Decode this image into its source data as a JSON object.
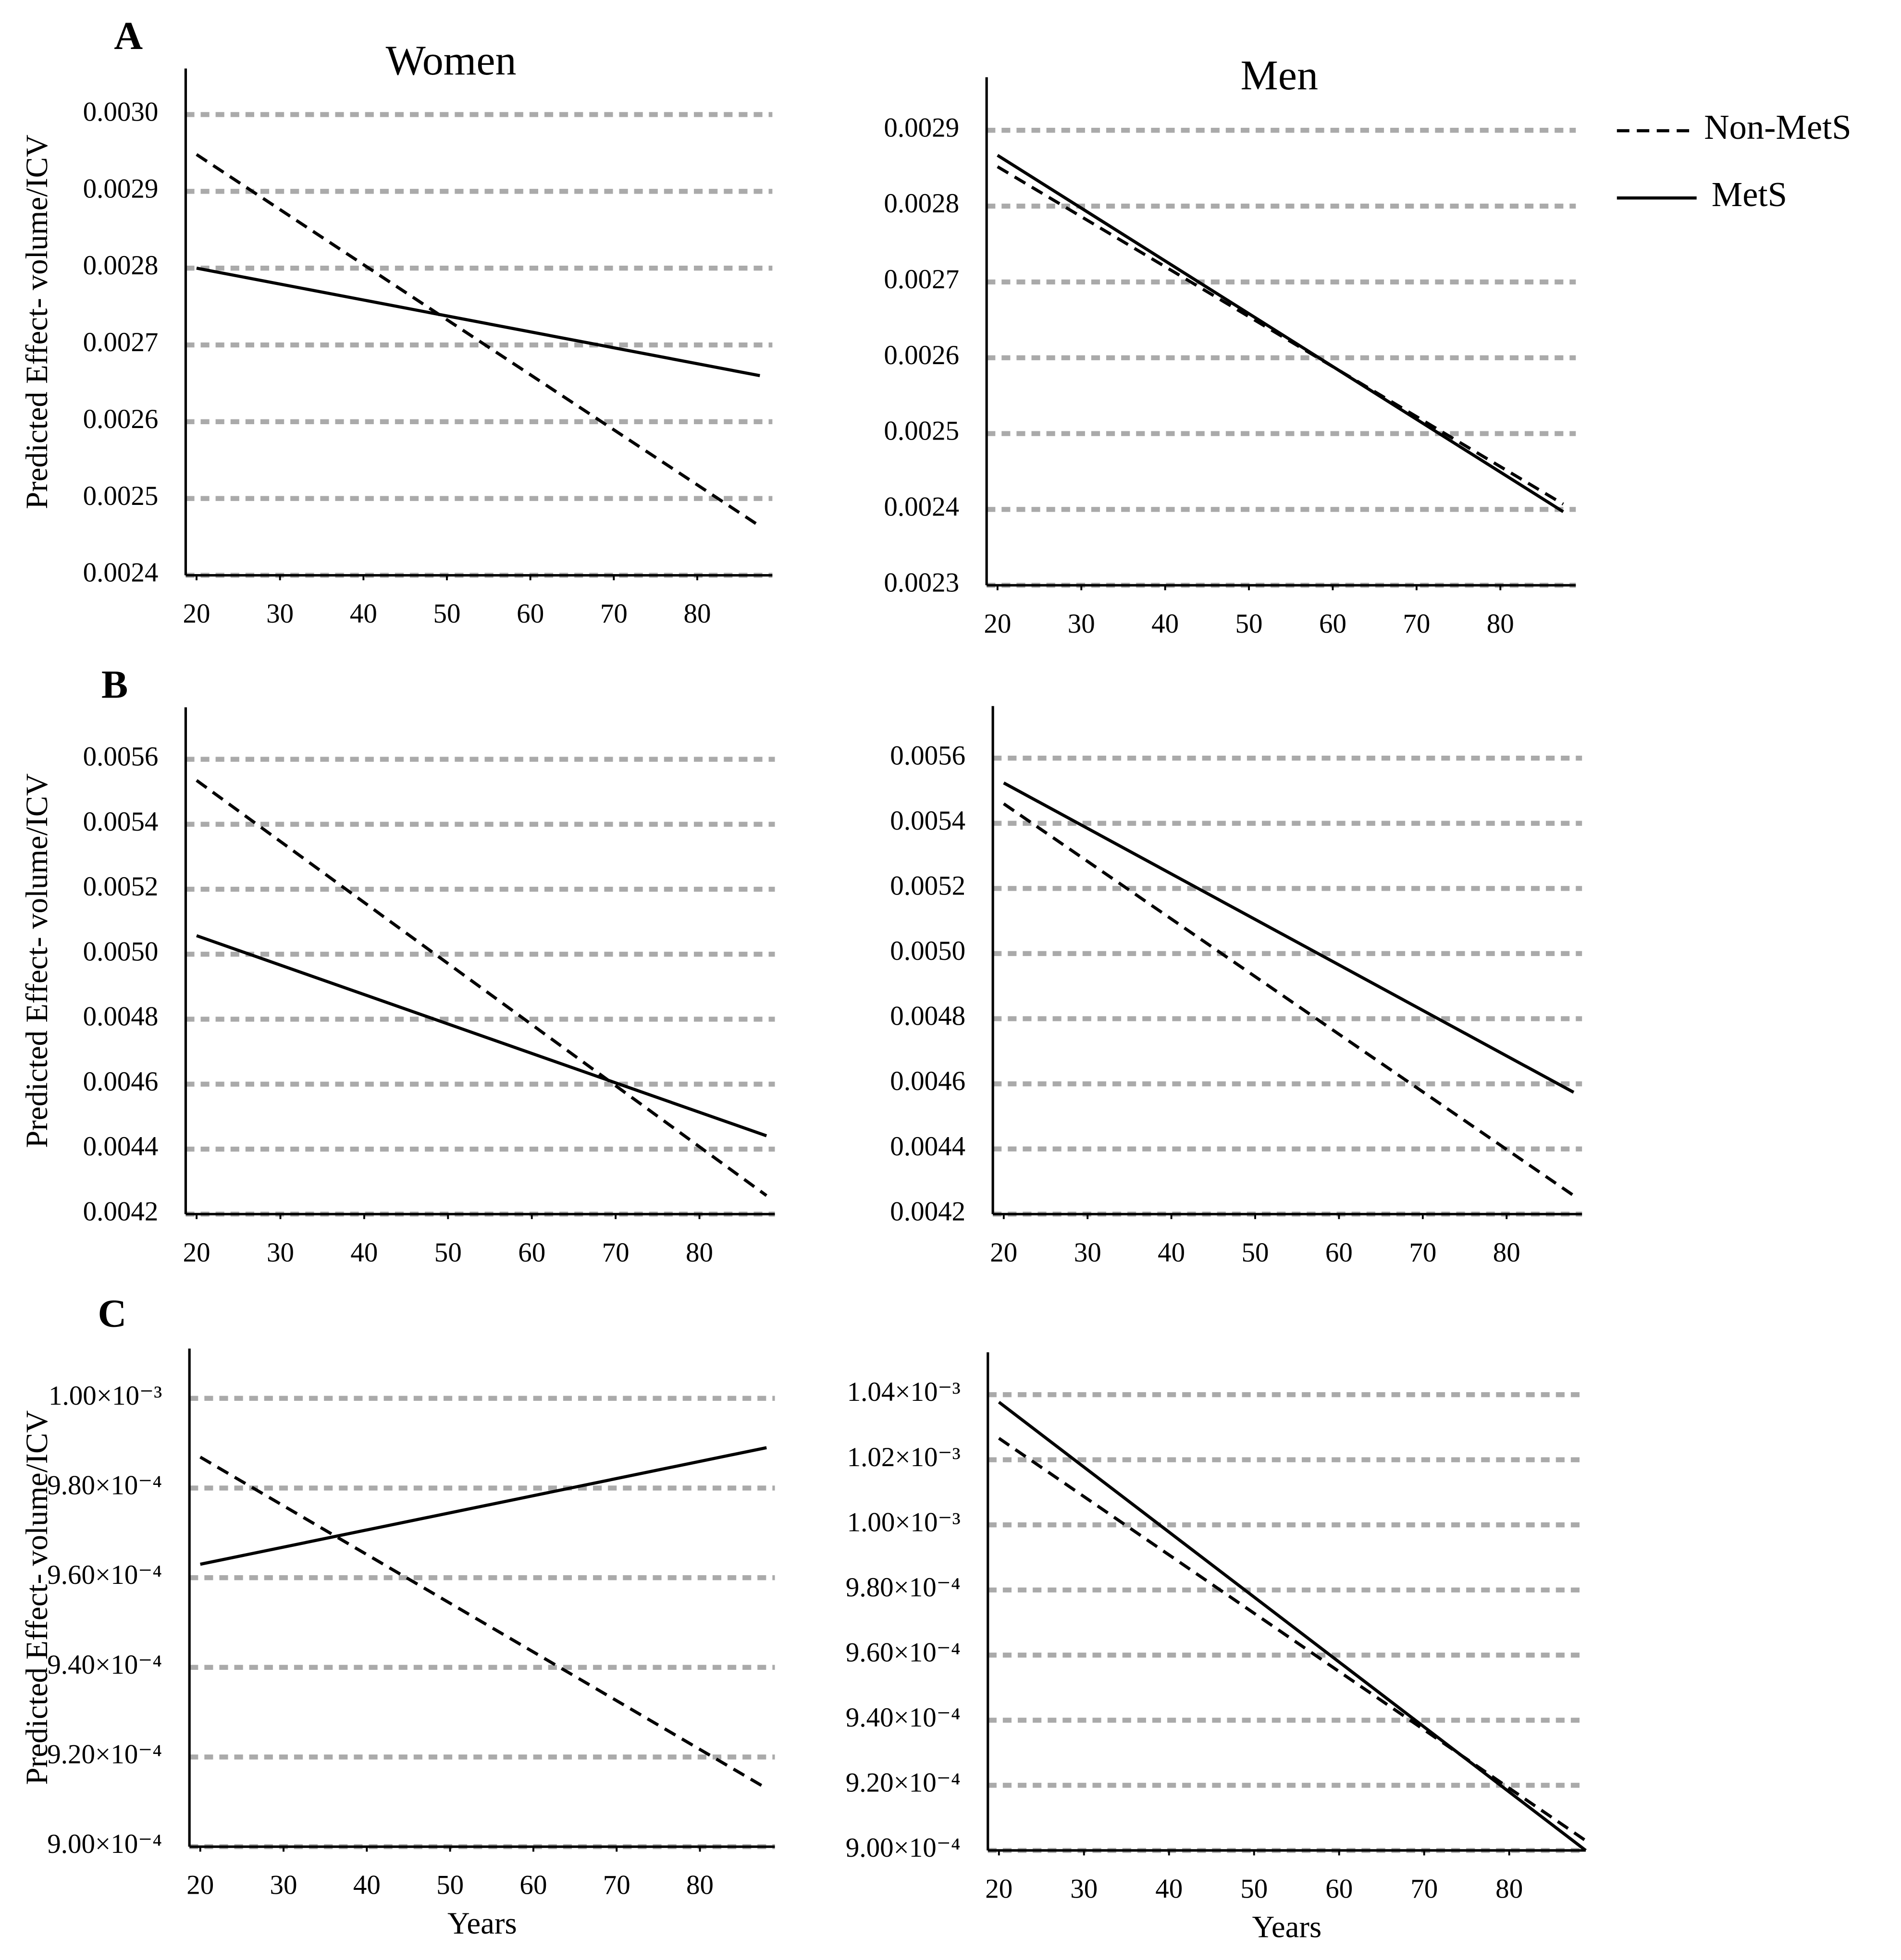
{
  "chart_data": [
    {
      "type": "line",
      "panel": "A",
      "title": "Women",
      "ylabel": "Predicted Effect- volume/ICV",
      "x": [
        20,
        87.5
      ],
      "series": [
        {
          "color": "#000000",
          "dash": "dashed",
          "values": [
            0.002948,
            0.002464
          ]
        },
        {
          "color": "#000000",
          "dash": "solid",
          "values": [
            0.0028,
            0.00266
          ]
        }
      ],
      "xlim": [
        18.7,
        89
      ],
      "xticks": [
        20,
        30,
        40,
        50,
        60,
        70,
        80
      ],
      "ylim": [
        0.0024,
        0.00306
      ],
      "yticks": [
        0.0024,
        0.0025,
        0.0026,
        0.0027,
        0.0028,
        0.0029,
        {
          "value": 0.003,
          "label": "0.0030"
        }
      ],
      "grid": true
    },
    {
      "type": "line",
      "title": "Men",
      "x": [
        20,
        87.5
      ],
      "legend": "right",
      "series": [
        {
          "name": "Non-MetS",
          "color": "#000000",
          "dash": "dashed",
          "values": [
            0.002852,
            0.002407
          ]
        },
        {
          "name": "MetS",
          "color": "#000000",
          "dash": "solid",
          "values": [
            0.002867,
            0.002397
          ]
        }
      ],
      "xlim": [
        18.7,
        89
      ],
      "xticks": [
        20,
        30,
        40,
        50,
        60,
        70,
        80
      ],
      "ylim": [
        0.0023,
        0.00297
      ],
      "yticks": [
        0.0023,
        0.0024,
        0.0025,
        0.0026,
        0.0027,
        0.0028,
        0.0029
      ],
      "grid": true
    },
    {
      "type": "line",
      "panel": "B",
      "ylabel": "Predicted Effect- volume/ICV",
      "x": [
        20,
        88
      ],
      "series": [
        {
          "color": "#000000",
          "dash": "dashed",
          "values": [
            0.005535,
            0.004257
          ]
        },
        {
          "color": "#000000",
          "dash": "solid",
          "values": [
            0.005057,
            0.004441
          ]
        }
      ],
      "xlim": [
        18.7,
        89
      ],
      "xticks": [
        20,
        30,
        40,
        50,
        60,
        70,
        80
      ],
      "ylim": [
        0.0042,
        0.00576
      ],
      "yticks": [
        0.0042,
        0.0044,
        0.0046,
        0.0048,
        {
          "value": 0.005,
          "label": "0.0050"
        },
        0.0052,
        0.0054,
        0.0056
      ],
      "grid": true
    },
    {
      "type": "line",
      "x": [
        20,
        88
      ],
      "series": [
        {
          "color": "#000000",
          "dash": "dashed",
          "values": [
            0.00546,
            0.004257
          ]
        },
        {
          "color": "#000000",
          "dash": "solid",
          "values": [
            0.005524,
            0.004574
          ]
        }
      ],
      "xlim": [
        18.7,
        89
      ],
      "xticks": [
        20,
        30,
        40,
        50,
        60,
        70,
        80
      ],
      "ylim": [
        0.0042,
        0.00576
      ],
      "yticks": [
        0.0042,
        0.0044,
        0.0046,
        0.0048,
        {
          "value": 0.005,
          "label": "0.0050"
        },
        0.0052,
        0.0054,
        0.0056
      ],
      "grid": true
    },
    {
      "type": "line",
      "panel": "C",
      "ylabel": "Predicted Effect- volume/ICV",
      "xlabel": "Years",
      "x": [
        20,
        88
      ],
      "series": [
        {
          "color": "#000000",
          "dash": "dashed",
          "values": [
            0.0009869,
            0.000913
          ]
        },
        {
          "color": "#000000",
          "dash": "solid",
          "values": [
            0.000963,
            0.000989
          ]
        }
      ],
      "xlim": [
        18.7,
        89
      ],
      "xticks": [
        20,
        30,
        40,
        50,
        60,
        70,
        80
      ],
      "ylim": [
        0.0009,
        0.0010111
      ],
      "yticks": [
        {
          "value": 0.0009,
          "label": "9.00×10⁻⁴"
        },
        {
          "value": 0.00092,
          "label": "9.20×10⁻⁴"
        },
        {
          "value": 0.00094,
          "label": "9.40×10⁻⁴"
        },
        {
          "value": 0.00096,
          "label": "9.60×10⁻⁴"
        },
        {
          "value": 0.00098,
          "label": "9.80×10⁻⁴"
        },
        {
          "value": 0.001,
          "label": "1.00×10⁻³"
        }
      ],
      "grid": true
    },
    {
      "type": "line",
      "xlabel": "Years",
      "x": [
        20,
        89
      ],
      "series": [
        {
          "color": "#000000",
          "dash": "dashed",
          "values": [
            0.0010266,
            0.000903
          ]
        },
        {
          "color": "#000000",
          "dash": "solid",
          "values": [
            0.0010377,
            0.0009
          ]
        }
      ],
      "xlim": [
        18.7,
        89
      ],
      "xticks": [
        20,
        30,
        40,
        50,
        60,
        70,
        80
      ],
      "ylim": [
        0.0009,
        0.001053
      ],
      "yticks": [
        {
          "value": 0.0009,
          "label": "9.00×10⁻⁴"
        },
        {
          "value": 0.00092,
          "label": "9.20×10⁻⁴"
        },
        {
          "value": 0.00094,
          "label": "9.40×10⁻⁴"
        },
        {
          "value": 0.00096,
          "label": "9.60×10⁻⁴"
        },
        {
          "value": 0.00098,
          "label": "9.80×10⁻⁴"
        },
        {
          "value": 0.001,
          "label": "1.00×10⁻³"
        },
        {
          "value": 0.00102,
          "label": "1.02×10⁻³"
        },
        {
          "value": 0.00104,
          "label": "1.04×10⁻³"
        }
      ],
      "grid": true
    }
  ]
}
